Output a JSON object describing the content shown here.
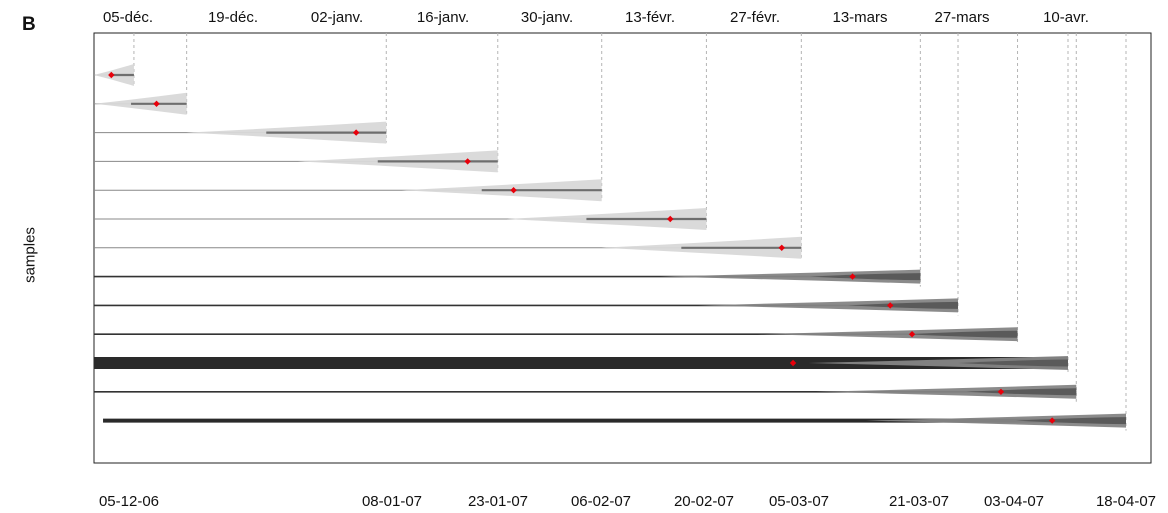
{
  "chart_data": {
    "type": "scatter",
    "panel_label": "B",
    "ylabel": "samples",
    "xlim_days": [
      0,
      137
    ],
    "top_axis_ticks": [
      "05-déc.",
      "19-déc.",
      "02-janv.",
      "16-janv.",
      "30-janv.",
      "13-févr.",
      "27-févr.",
      "13-mars",
      "27-mars",
      "10-avr."
    ],
    "bottom_axis_ticks": [
      "05-12-06",
      "08-01-07",
      "23-01-07",
      "06-02-07",
      "20-02-07",
      "05-03-07",
      "21-03-07",
      "03-04-07",
      "18-04-07"
    ],
    "samples": [
      {
        "start": 0,
        "end": 5.3,
        "estimate": 2.3,
        "shade": "light"
      },
      {
        "start": 0,
        "end": 12.3,
        "estimate": 8.3,
        "shade": "light"
      },
      {
        "start": 0,
        "end": 38.8,
        "estimate": 34.8,
        "shade": "light"
      },
      {
        "start": 0,
        "end": 53.6,
        "estimate": 49.6,
        "shade": "light"
      },
      {
        "start": 0,
        "end": 67.4,
        "estimate": 55.7,
        "shade": "light"
      },
      {
        "start": 0,
        "end": 81.3,
        "estimate": 76.5,
        "shade": "light"
      },
      {
        "start": 0,
        "end": 93.9,
        "estimate": 91.3,
        "shade": "light"
      },
      {
        "start": 0,
        "end": 109.7,
        "estimate": 100.7,
        "shade": "dark"
      },
      {
        "start": 0,
        "end": 114.7,
        "estimate": 105.7,
        "shade": "dark"
      },
      {
        "start": 0,
        "end": 122.6,
        "estimate": 108.6,
        "shade": "dark"
      },
      {
        "start": 0,
        "end": 129.3,
        "estimate": 92.8,
        "shade": "dark"
      },
      {
        "start": 0,
        "end": 130.4,
        "estimate": 120.4,
        "shade": "dark"
      },
      {
        "start": 1.2,
        "end": 137.0,
        "estimate": 127.2,
        "shade": "dark"
      }
    ],
    "colors": {
      "light_tail": "#d8d8d8",
      "dark_tail": "#858585",
      "line_light": "#888888",
      "line_dark": "#333333",
      "thick_bar": "#2a2a2a",
      "marker": "#e8000b",
      "guide": "#b4b4b4"
    }
  }
}
